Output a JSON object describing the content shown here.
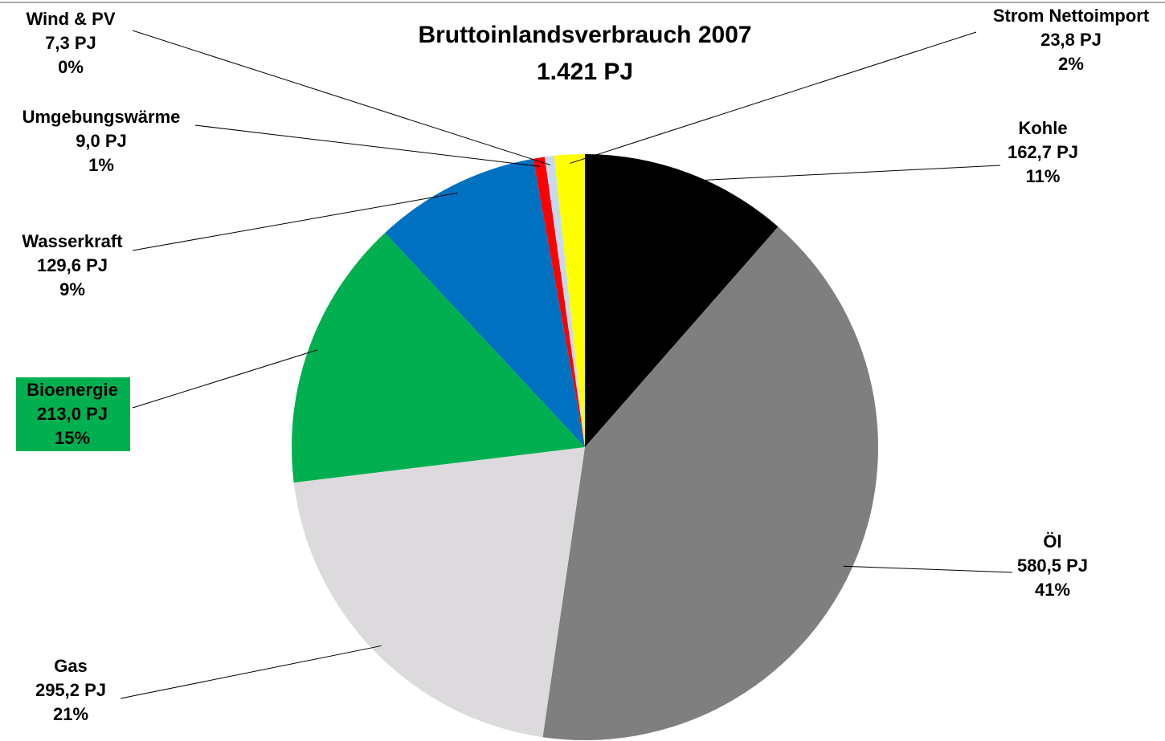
{
  "chart_data": {
    "type": "pie",
    "title": "Bruttoinlandsverbrauch 2007",
    "subtitle": "1.421 PJ",
    "categories": [
      "Kohle",
      "Öl",
      "Gas",
      "Bioenergie",
      "Wasserkraft",
      "Umgebungswärme",
      "Wind & PV",
      "Strom Nettoimport"
    ],
    "values": [
      162.7,
      580.5,
      295.2,
      213.0,
      129.6,
      9.0,
      7.3,
      23.8
    ],
    "value_labels": [
      "162,7 PJ",
      "580,5 PJ",
      "295,2 PJ",
      "213,0 PJ",
      "129,6 PJ",
      "9,0 PJ",
      "7,3 PJ",
      "23,8 PJ"
    ],
    "share_labels": [
      "11%",
      "41%",
      "21%",
      "15%",
      "9%",
      "1%",
      "0%",
      "2%"
    ],
    "colors": [
      "#000000",
      "#807f80",
      "#dcdadd",
      "#00b050",
      "#0070c0",
      "#ff0000",
      "#c6d9f1",
      "#ffff00"
    ]
  }
}
